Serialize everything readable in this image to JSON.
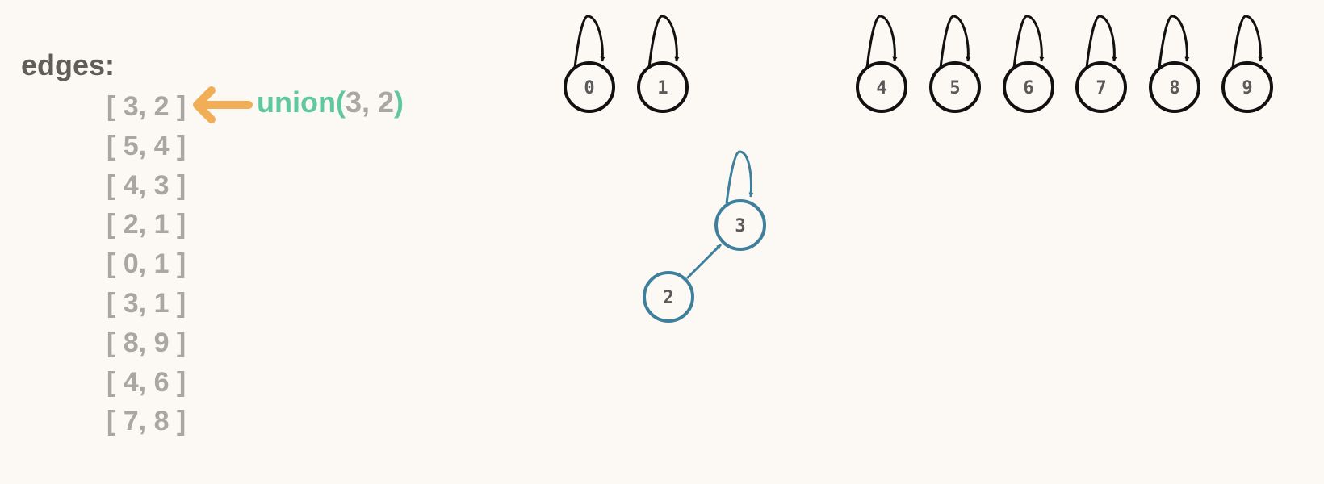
{
  "edges_title": "edges:",
  "edges": [
    {
      "label": "[ 3, 2 ]",
      "highlighted": true
    },
    {
      "label": "[ 5, 4 ]"
    },
    {
      "label": "[ 4, 3 ]"
    },
    {
      "label": "[ 2, 1 ]"
    },
    {
      "label": "[ 0, 1 ]"
    },
    {
      "label": "[ 3, 1 ]"
    },
    {
      "label": "[ 8, 9 ]"
    },
    {
      "label": "[ 4, 6 ]"
    },
    {
      "label": "[ 7, 8 ]"
    }
  ],
  "operation": {
    "name": "union",
    "args": "3, 2"
  },
  "nodes": {
    "0": {
      "label": "0"
    },
    "1": {
      "label": "1"
    },
    "2": {
      "label": "2"
    },
    "3": {
      "label": "3"
    },
    "4": {
      "label": "4"
    },
    "5": {
      "label": "5"
    },
    "6": {
      "label": "6"
    },
    "7": {
      "label": "7"
    },
    "8": {
      "label": "8"
    },
    "9": {
      "label": "9"
    }
  },
  "parents": {
    "0": "0",
    "1": "1",
    "2": "3",
    "3": "3",
    "4": "4",
    "5": "5",
    "6": "6",
    "7": "7",
    "8": "8",
    "9": "9"
  },
  "colors": {
    "background": "#fcf9f4",
    "default_node": "#111111",
    "active_node": "#3e7f9b",
    "pointer_arrow": "#f2ae57",
    "operation_name": "#5fc8a0",
    "edge_text": "#a9a7a3",
    "title_text": "#5f5e5b"
  }
}
